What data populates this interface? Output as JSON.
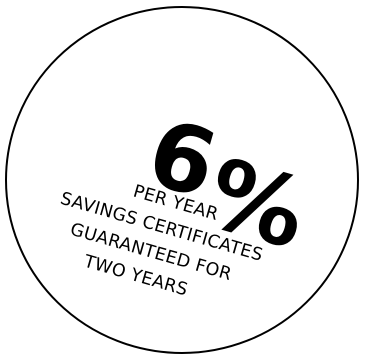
{
  "badge": {
    "rate_number": "6",
    "rate_symbol": "%",
    "lines": [
      "PER YEAR",
      "SAVINGS CERTIFICATES",
      "GUARANTEED FOR",
      "TWO YEARS"
    ]
  },
  "colors": {
    "background": "#ffffff",
    "ink": "#000000"
  }
}
